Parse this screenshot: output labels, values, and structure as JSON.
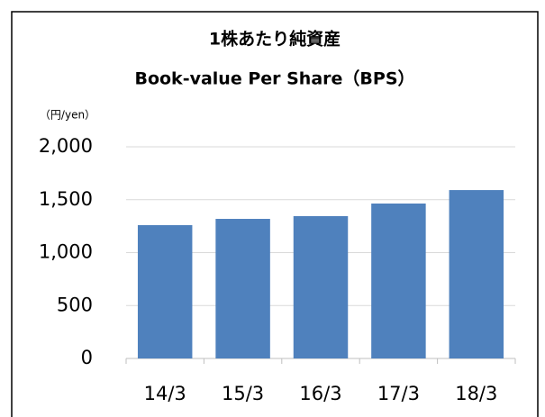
{
  "chart_data": {
    "type": "bar",
    "title": [
      "1株あたり純資産",
      "Book-value Per Share（BPS）"
    ],
    "y_axis_label": "（円/yen）",
    "categories": [
      "14/3",
      "15/3",
      "16/3",
      "17/3",
      "18/3"
    ],
    "values": [
      1260,
      1319,
      1345,
      1464,
      1591
    ],
    "color": "#4f81bd",
    "ylim": [
      0,
      2000
    ],
    "yticks": [
      0,
      500,
      {
        "value": 1000,
        "label": "1,000"
      },
      {
        "value": 1500,
        "label": "1,500"
      },
      {
        "value": 2000,
        "label": "2,000"
      }
    ],
    "grid": true
  }
}
